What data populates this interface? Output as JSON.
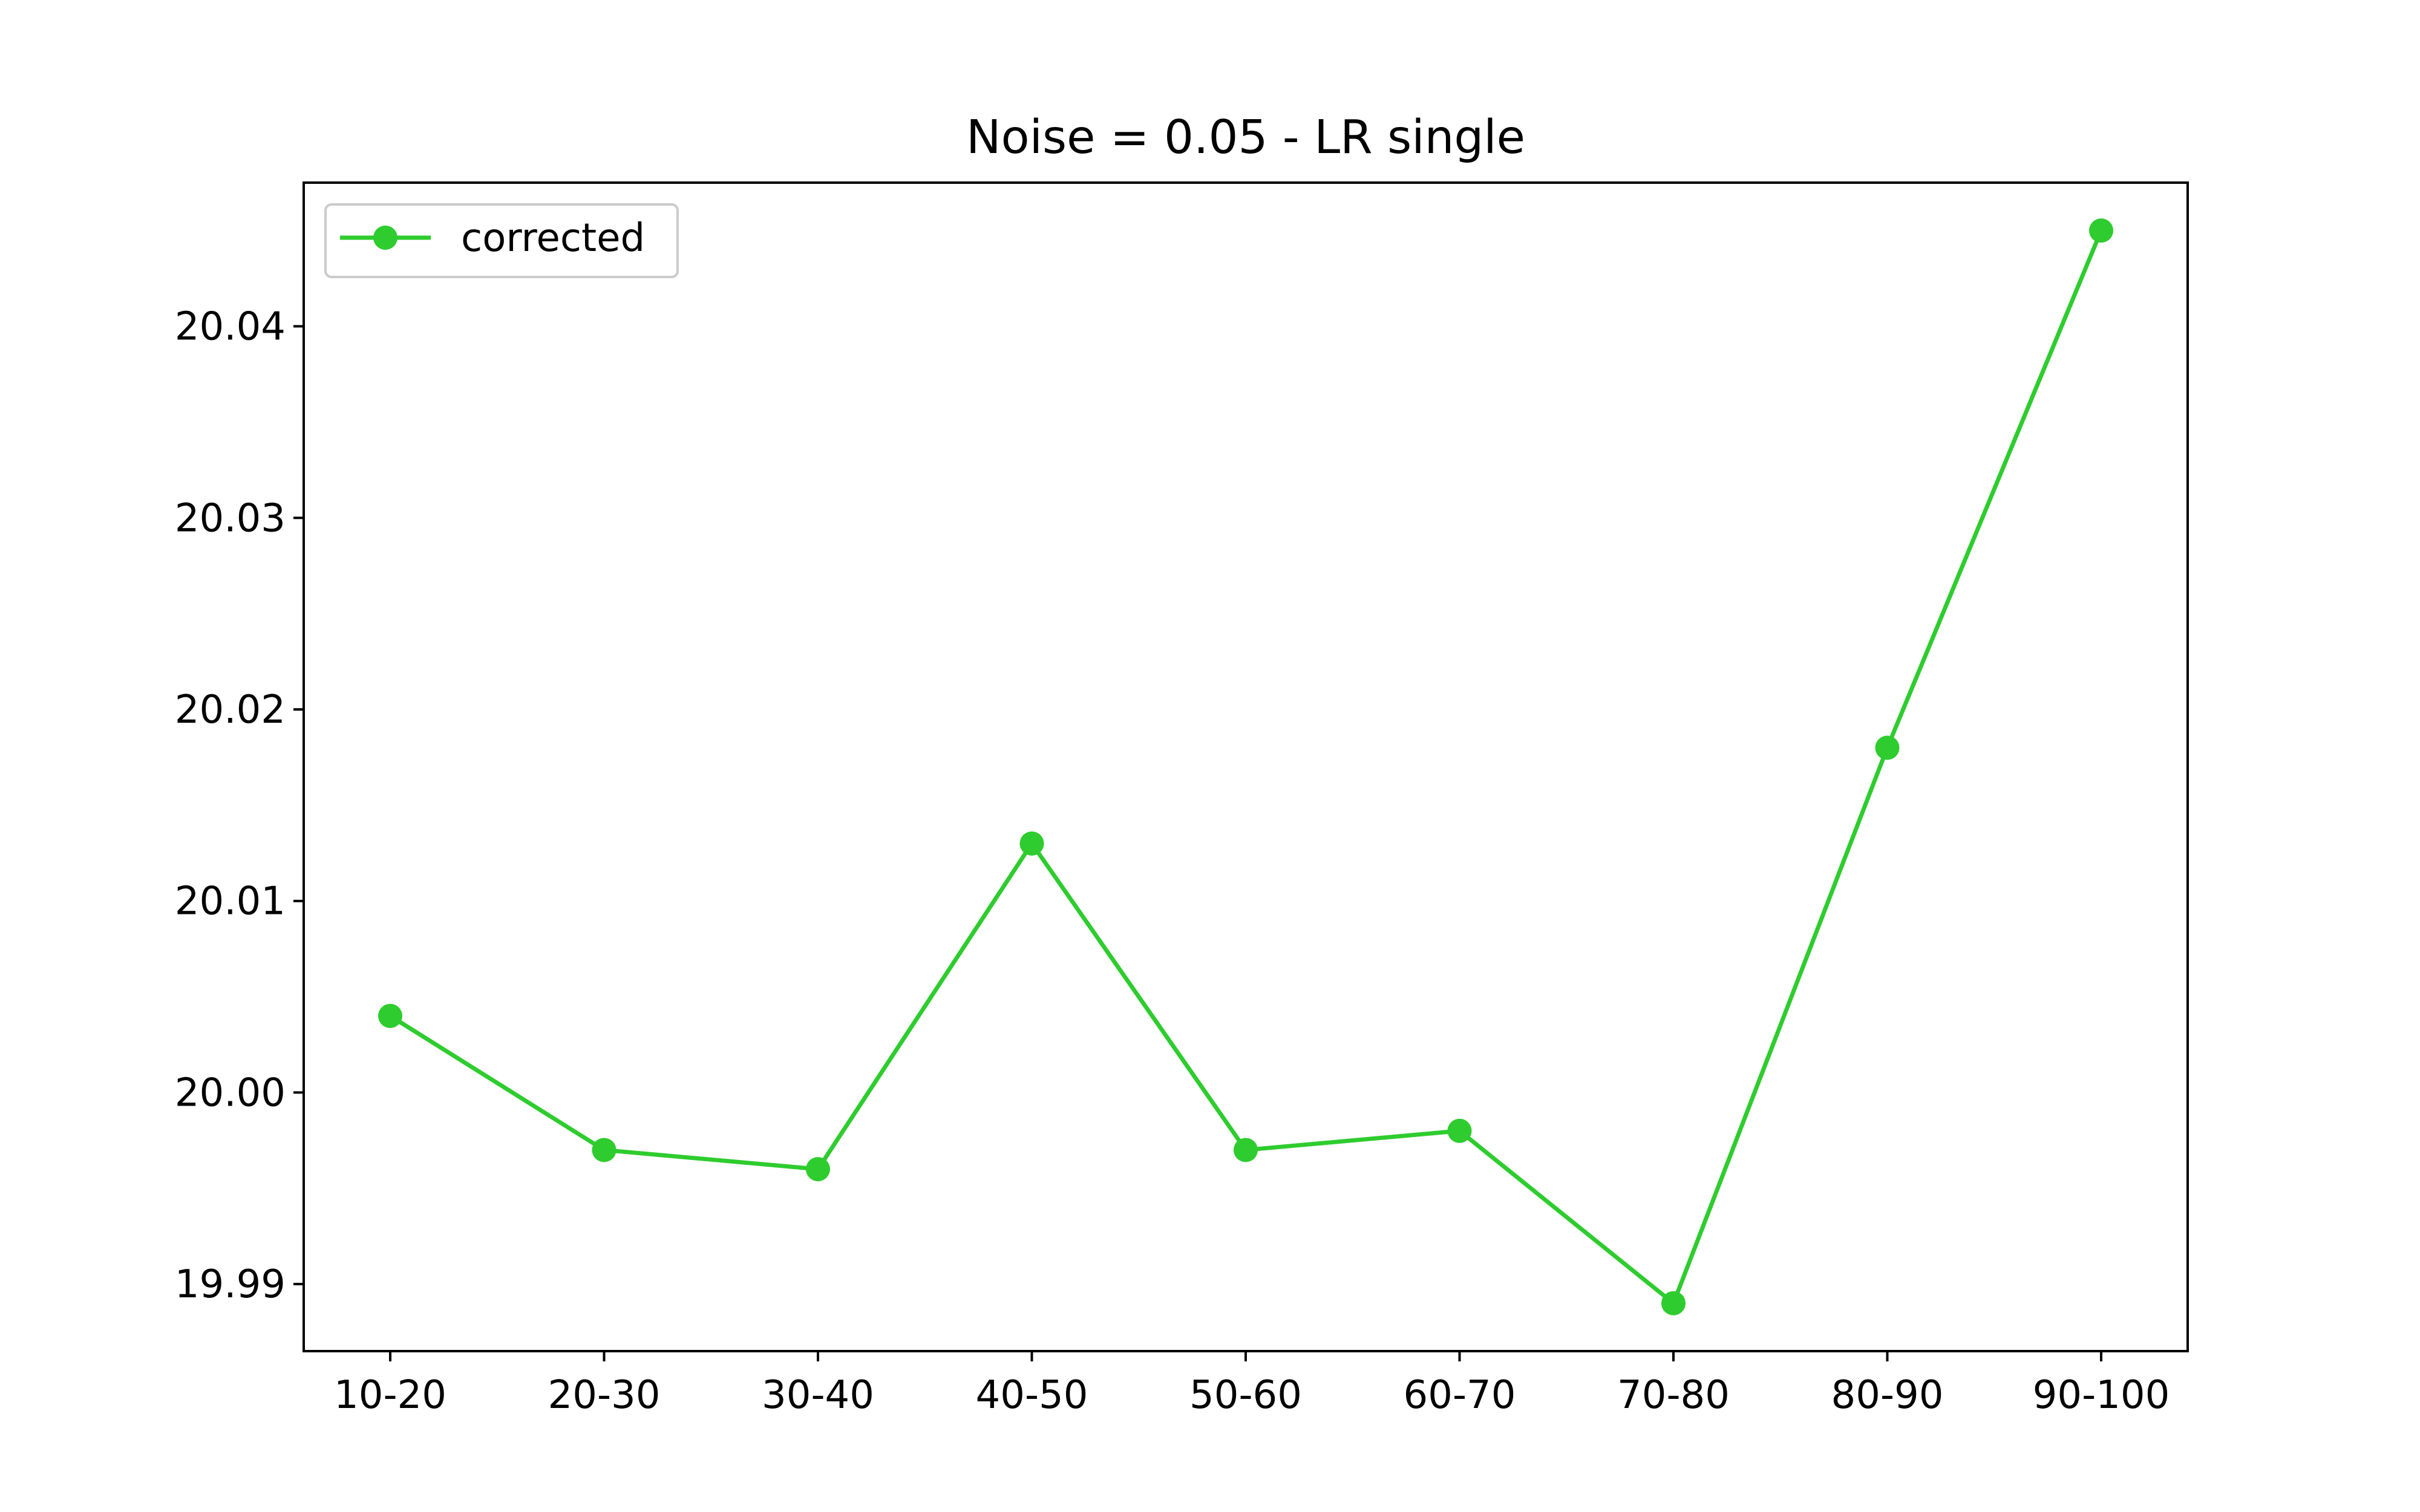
{
  "chart_data": {
    "type": "line",
    "title": "Noise = 0.05 - LR single",
    "xlabel": "",
    "ylabel": "",
    "categories": [
      "10-20",
      "20-30",
      "30-40",
      "40-50",
      "50-60",
      "60-70",
      "70-80",
      "80-90",
      "90-100"
    ],
    "series": [
      {
        "name": "corrected",
        "color": "#2ecc2e",
        "marker": "circle",
        "values": [
          20.004,
          19.997,
          19.996,
          20.013,
          19.997,
          19.998,
          19.989,
          20.018,
          20.045
        ]
      }
    ],
    "ylim": [
      19.9865,
      20.0475
    ],
    "yticks": [
      19.99,
      20.0,
      20.01,
      20.02,
      20.03,
      20.04
    ],
    "ytick_labels": [
      "19.99",
      "20.00",
      "20.01",
      "20.02",
      "20.03",
      "20.04"
    ],
    "grid": false,
    "legend": {
      "placement": "upper-left"
    }
  }
}
